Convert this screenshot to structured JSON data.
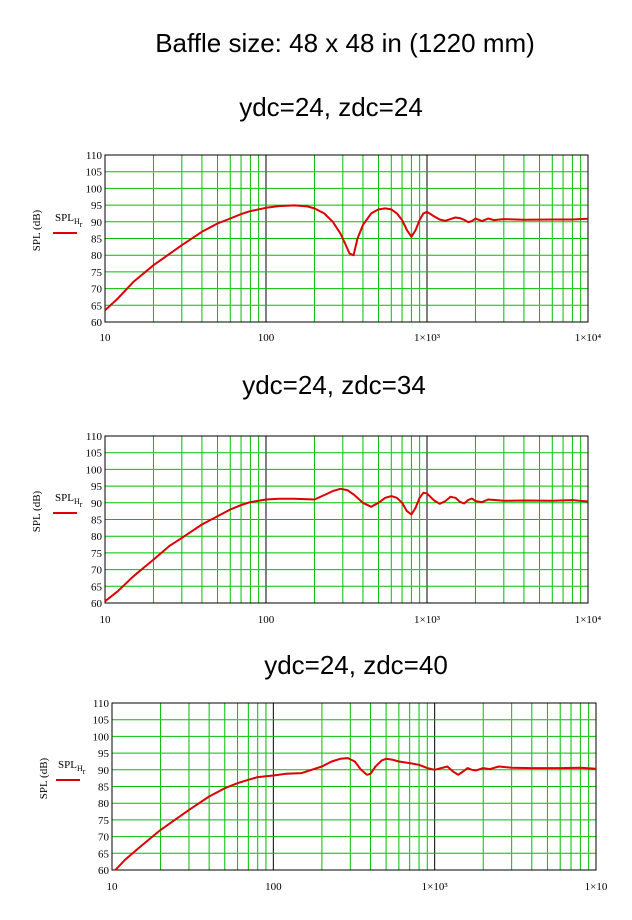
{
  "title": "Baffle size: 48 x 48 in (1220 mm)",
  "colors": {
    "grid": "#00c000",
    "decade": "#000000",
    "curve": "#dd0000"
  },
  "chart_data": [
    {
      "type": "line",
      "title": "ydc=24, zdc=24",
      "ylabel": "SPL (dB)",
      "xscale": "log",
      "xlim": [
        10,
        10000
      ],
      "ylim": [
        60,
        110
      ],
      "x_tick_labels": [
        "10",
        "100",
        "1×10³",
        "1×10⁴"
      ],
      "y_tick_labels": [
        "60",
        "65",
        "70",
        "75",
        "80",
        "85",
        "90",
        "95",
        "100",
        "105",
        "110"
      ],
      "grid": true,
      "legend_position": "left",
      "series": [
        {
          "name": "SPL_Hr",
          "x": [
            10,
            12,
            15,
            20,
            30,
            40,
            50,
            60,
            70,
            80,
            100,
            120,
            150,
            180,
            200,
            230,
            260,
            290,
            310,
            330,
            350,
            370,
            400,
            450,
            500,
            550,
            600,
            650,
            700,
            750,
            800,
            850,
            900,
            950,
            1000,
            1100,
            1200,
            1300,
            1400,
            1500,
            1600,
            1700,
            1800,
            1900,
            2000,
            2200,
            2400,
            2600,
            3000,
            4000,
            6000,
            8000,
            10000
          ],
          "y": [
            63.5,
            67,
            72,
            77,
            83,
            87,
            89.5,
            91,
            92.3,
            93.2,
            94.2,
            94.7,
            94.9,
            94.6,
            94,
            92.5,
            90,
            86.5,
            83.5,
            80.5,
            80,
            85,
            89,
            92.5,
            93.7,
            94,
            93.7,
            92.5,
            90.5,
            87.5,
            85.5,
            87.5,
            90.5,
            92.5,
            93,
            91.7,
            90.7,
            90.3,
            90.8,
            91.3,
            91.1,
            90.6,
            89.9,
            90.2,
            91,
            90.2,
            91,
            90.5,
            90.8,
            90.6,
            90.7,
            90.7,
            90.9
          ]
        }
      ]
    },
    {
      "type": "line",
      "title": "ydc=24, zdc=34",
      "ylabel": "SPL (dB)",
      "xscale": "log",
      "xlim": [
        10,
        10000
      ],
      "ylim": [
        60,
        110
      ],
      "x_tick_labels": [
        "10",
        "100",
        "1×10³",
        "1×10⁴"
      ],
      "y_tick_labels": [
        "60",
        "65",
        "70",
        "75",
        "80",
        "85",
        "90",
        "95",
        "100",
        "105",
        "110"
      ],
      "grid": true,
      "legend_position": "left",
      "series": [
        {
          "name": "SPL_Hr",
          "x": [
            10,
            12,
            15,
            20,
            25,
            30,
            40,
            50,
            60,
            70,
            80,
            100,
            120,
            150,
            200,
            230,
            260,
            290,
            320,
            350,
            400,
            450,
            500,
            550,
            600,
            650,
            700,
            750,
            800,
            850,
            900,
            950,
            1000,
            1100,
            1200,
            1300,
            1400,
            1500,
            1600,
            1700,
            1800,
            1900,
            2000,
            2200,
            2400,
            3000,
            4000,
            6000,
            8000,
            10000
          ],
          "y": [
            60.5,
            63.5,
            68,
            73,
            77,
            79.5,
            83.5,
            86,
            88,
            89.3,
            90.2,
            91,
            91.2,
            91.2,
            91,
            92.3,
            93.5,
            94.2,
            93.8,
            92.5,
            90,
            88.8,
            90,
            91.5,
            92,
            91.5,
            90,
            87.5,
            86.5,
            88.5,
            91.5,
            93,
            92.8,
            90.8,
            89.7,
            90.5,
            91.8,
            91.5,
            90.3,
            89.8,
            90.8,
            91.3,
            90.5,
            90.2,
            91,
            90.6,
            90.7,
            90.6,
            90.8,
            90.4
          ]
        }
      ]
    },
    {
      "type": "line",
      "title": "ydc=24, zdc=40",
      "ylabel": "SPL (dB)",
      "xscale": "log",
      "xlim": [
        10,
        10000
      ],
      "ylim": [
        60,
        110
      ],
      "x_tick_labels": [
        "10",
        "100",
        "1×10³",
        "1×10"
      ],
      "y_tick_labels": [
        "60",
        "65",
        "70",
        "75",
        "80",
        "85",
        "90",
        "95",
        "100",
        "105",
        "110"
      ],
      "grid": true,
      "legend_position": "left",
      "series": [
        {
          "name": "SPL_Hr",
          "x": [
            10.5,
            12,
            15,
            20,
            30,
            40,
            50,
            60,
            70,
            80,
            100,
            120,
            150,
            200,
            230,
            260,
            290,
            320,
            350,
            380,
            400,
            430,
            470,
            500,
            550,
            600,
            700,
            800,
            900,
            1000,
            1100,
            1200,
            1300,
            1400,
            1500,
            1600,
            1700,
            1800,
            2000,
            2200,
            2500,
            3000,
            4000,
            6000,
            8000,
            10000
          ],
          "y": [
            60,
            63,
            67,
            72,
            78,
            82,
            84.5,
            86,
            87,
            87.8,
            88.3,
            88.8,
            89,
            91,
            92.5,
            93.3,
            93.5,
            92.5,
            90,
            88.5,
            88.8,
            91,
            92.8,
            93.3,
            93,
            92.5,
            92,
            91.5,
            90.5,
            90,
            90.5,
            91,
            89.5,
            88.5,
            89.5,
            90.5,
            90,
            89.8,
            90.5,
            90.2,
            91,
            90.6,
            90.5,
            90.5,
            90.6,
            90.3
          ]
        }
      ]
    }
  ]
}
